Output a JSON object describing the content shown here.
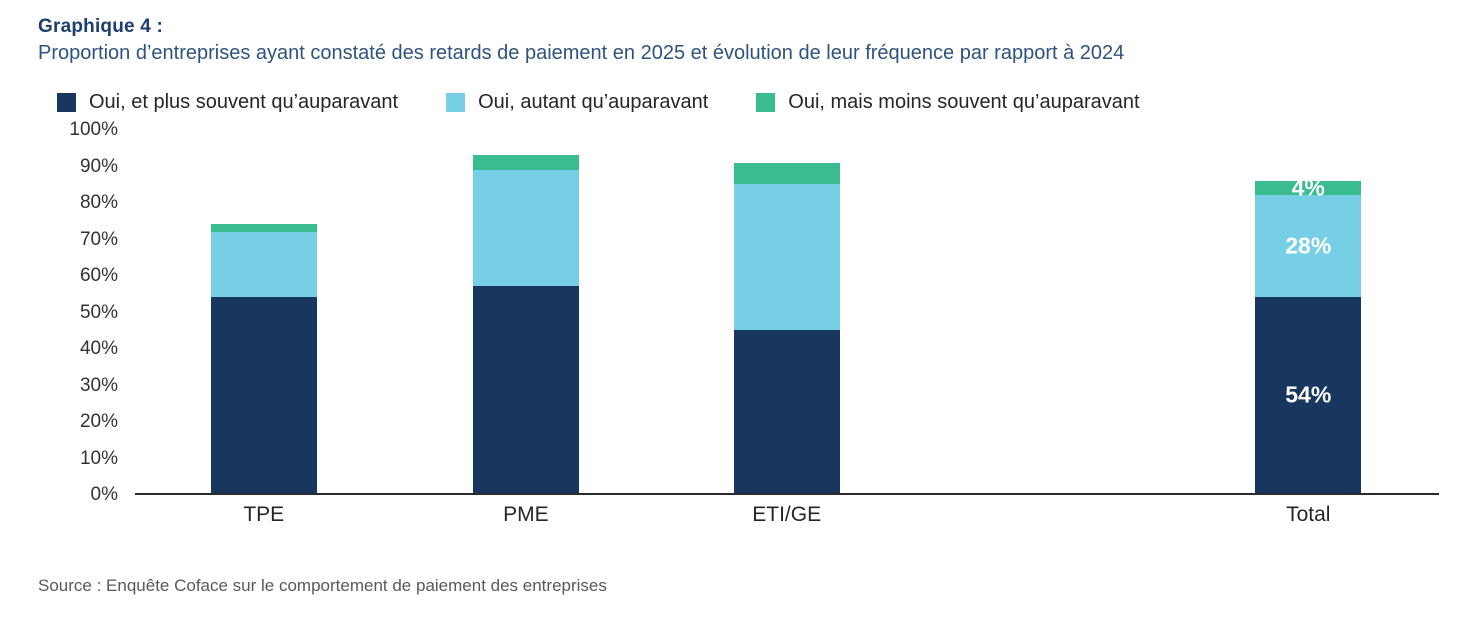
{
  "chart_data": {
    "type": "bar",
    "stacked": true,
    "title": "Graphique 4 :",
    "subtitle": "Proportion d’entreprises ayant constaté des retards de paiement en 2025 et évolution de leur fréquence par rapport à 2024",
    "source": "Source : Enquête Coface sur le comportement de paiement des entreprises",
    "categories": [
      "TPE",
      "PME",
      "ETI/GE",
      "Total"
    ],
    "series": [
      {
        "name": "Oui, et plus souvent qu’auparavant",
        "color": "#17375f",
        "values": [
          54,
          57,
          45,
          54
        ]
      },
      {
        "name": "Oui, autant qu’auparavant",
        "color": "#76cfe4",
        "values": [
          18,
          32,
          40,
          28
        ]
      },
      {
        "name": "Oui, mais moins souvent qu’auparavant",
        "color": "#3abc90",
        "values": [
          2,
          4,
          6,
          4
        ]
      }
    ],
    "data_labels": {
      "category": "Total",
      "values": [
        "54%",
        "28%",
        "4%"
      ]
    },
    "y_axis": {
      "min": 0,
      "max": 100,
      "step": 10,
      "suffix": "%"
    },
    "legend_position": "top",
    "grid": false,
    "layout": {
      "bar_left_pct": [
        5.8,
        25.9,
        45.9,
        85.9
      ],
      "bar_width_pct": 8.15
    },
    "colors": {
      "title_text": "#1d3e6f",
      "subtitle_text": "#2e5380",
      "legend_text": "#262626",
      "axis_line": "#2b2b2b",
      "tick_text": "#333333",
      "source_text": "#595959",
      "bar_label_text": "#ffffff"
    }
  }
}
